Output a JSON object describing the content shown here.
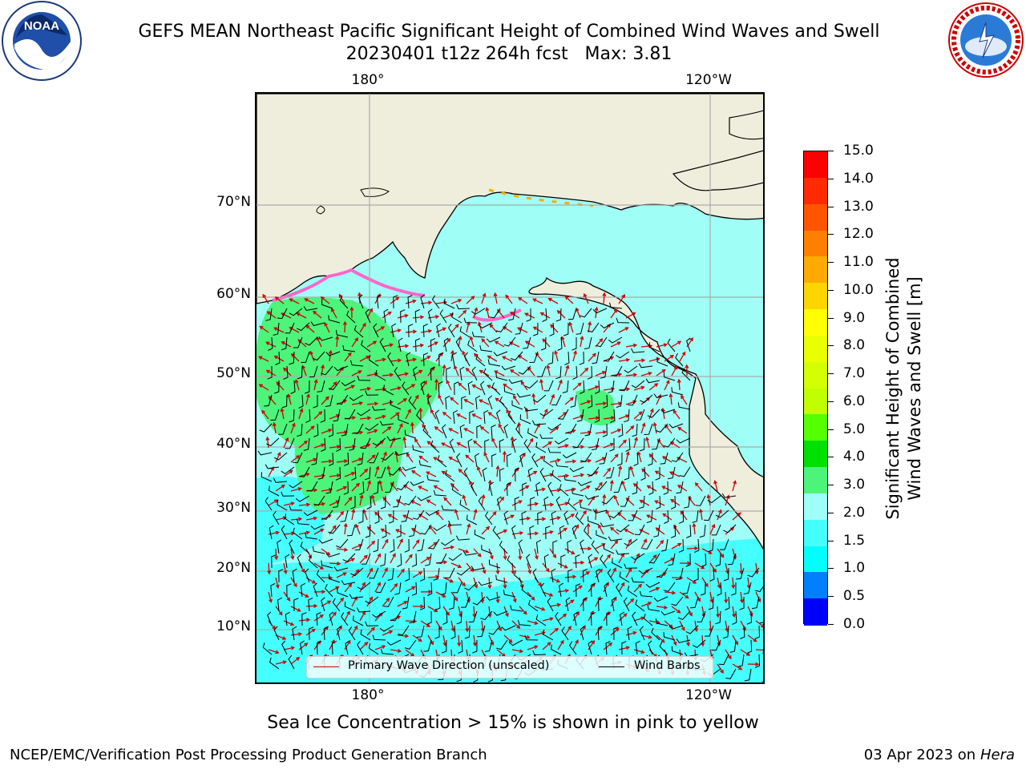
{
  "title": {
    "line1": "GEFS MEAN Northeast Pacific Significant Height of Combined Wind Waves and Swell",
    "line2": "20230401 t12z 264h fcst   Max: 3.81"
  },
  "map": {
    "lon_labels_top": [
      "180°",
      "120°W"
    ],
    "lon_labels_bottom": [
      "180°",
      "120°W"
    ],
    "lat_labels": [
      "70°N",
      "60°N",
      "50°N",
      "40°N",
      "30°N",
      "20°N",
      "10°N"
    ],
    "legend": {
      "wave_direction": "Primary Wave Direction (unscaled)",
      "wind_barbs": "Wind Barbs",
      "wave_color": "#d00000",
      "barb_color": "#000000"
    },
    "colors": {
      "land": "#efeedd",
      "ocean_2_0_3_0": "#9ffff6",
      "ocean_1_5_2_0": "#45ffff",
      "ocean_3_0_4_0": "#4cf47a",
      "sea_ice": "#ff66cc"
    }
  },
  "colorbar": {
    "title_line1": "Significant Height of Combined",
    "title_line2": "Wind Waves and Swell [m]",
    "tick_labels": [
      "15.0",
      "14.0",
      "13.0",
      "12.0",
      "11.0",
      "10.0",
      "9.0",
      "8.0",
      "7.0",
      "6.0",
      "5.0",
      "4.0",
      "3.0",
      "2.0",
      "1.5",
      "1.0",
      "0.5",
      "0.0"
    ],
    "colors_top_to_bottom": [
      "#ff0000",
      "#ff2a00",
      "#ff5500",
      "#ff7f00",
      "#ffaa00",
      "#ffd500",
      "#ffff00",
      "#eaff00",
      "#d4ff00",
      "#bfff00",
      "#55ff00",
      "#00e000",
      "#4cf47a",
      "#9ffff6",
      "#45ffff",
      "#00ffff",
      "#0080ff",
      "#0000ff"
    ]
  },
  "caption": "Sea Ice Concentration > 15% is shown in pink to yellow",
  "footer": {
    "left": "NCEP/EMC/Verification Post Processing Product Generation Branch",
    "right_date": "03 Apr 2023 on",
    "right_host": "Hera"
  },
  "logos": {
    "noaa_text": "NOAA",
    "nws_text": "NATIONAL WEATHER SERVICE"
  }
}
